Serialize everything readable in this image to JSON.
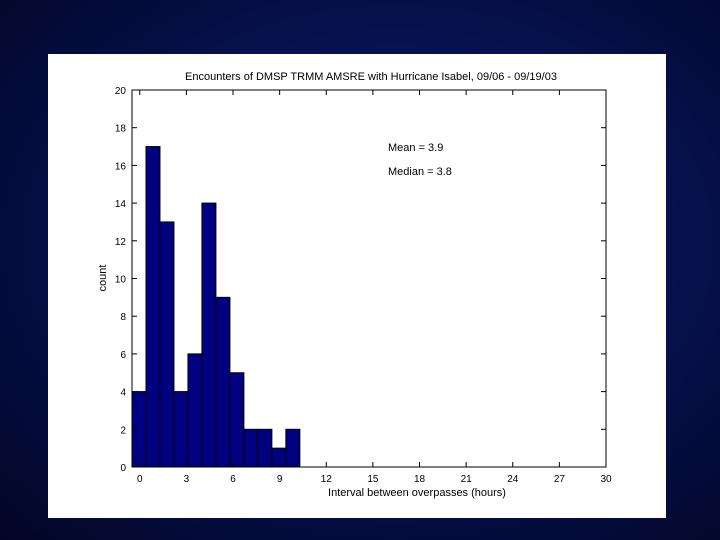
{
  "chart_data": {
    "type": "bar",
    "title": "Encounters of DMSP TRMM AMSRE with Hurricane Isabel, 09/06 - 09/19/03",
    "xlabel": "Interval between overpasses (hours)",
    "ylabel": "count",
    "xlim": [
      -0.5,
      30
    ],
    "ylim": [
      0,
      20
    ],
    "xticks": [
      0,
      3,
      6,
      9,
      12,
      15,
      18,
      21,
      24,
      27,
      30
    ],
    "yticks": [
      0,
      2,
      4,
      6,
      8,
      10,
      12,
      14,
      16,
      18,
      20
    ],
    "bin_width": 0.9,
    "bin_starts": [
      -0.5,
      0.4,
      1.3,
      2.2,
      3.1,
      4.0,
      4.9,
      5.8,
      6.7,
      7.6,
      8.5,
      9.4,
      10.3
    ],
    "values": [
      4,
      17,
      13,
      4,
      6,
      14,
      9,
      5,
      2,
      2,
      1,
      2,
      0
    ],
    "bar_color": "#000080",
    "grid": false,
    "annotations": [
      "Mean = 3.9",
      "Median = 3.8"
    ]
  },
  "colors": {
    "background": "#06104a",
    "panel": "#ffffff"
  }
}
